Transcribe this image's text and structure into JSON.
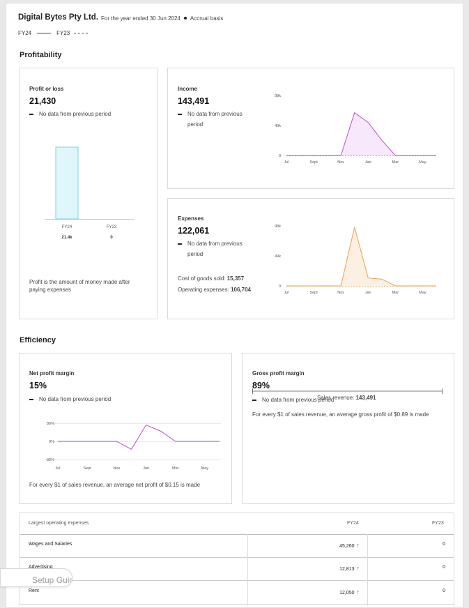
{
  "header": {
    "company": "Digital Bytes Pty Ltd.",
    "period": "For the year ended 30 Jun 2024",
    "basis": "Accrual basis",
    "legend_current": "FY24",
    "legend_previous": "FY23"
  },
  "profitability": {
    "title": "Profitability",
    "profit": {
      "label": "Profit or loss",
      "value": "21,430",
      "no_data": "No data from previous period",
      "description": "Profit is the amount of money made after paying expenses",
      "chart_data": {
        "type": "bar",
        "categories": [
          "FY24",
          "FY23"
        ],
        "values": [
          21.4,
          0
        ],
        "value_labels": [
          "21.4k",
          "0"
        ],
        "unit": "k",
        "colors": {
          "fill": "#dff6fb",
          "stroke": "#5fc8de"
        }
      }
    },
    "income": {
      "label": "Income",
      "value": "143,491",
      "no_data_line1": "No data from previous",
      "no_data_line2": "period",
      "chart_data": {
        "type": "area",
        "x": [
          "Jul",
          "Aug",
          "Sept",
          "Oct",
          "Nov",
          "Dec",
          "Jan",
          "Feb",
          "Mar",
          "Apr",
          "May",
          "Jun"
        ],
        "x_tick_labels": [
          "Jul",
          "Sept",
          "Nov",
          "Jan",
          "Mar",
          "May"
        ],
        "y_tick_labels": [
          "98k",
          "49k",
          "0"
        ],
        "ylim": [
          0,
          98
        ],
        "values": [
          0,
          0,
          0,
          0,
          0,
          70,
          54,
          25,
          0,
          0,
          0,
          0
        ],
        "color": "#b54fd6",
        "fill": "#f7e9fb"
      }
    },
    "expenses": {
      "label": "Expenses",
      "value": "122,061",
      "no_data_line1": "No data from previous",
      "no_data_line2": "period",
      "cogs_label": "Cost of goods sold:",
      "cogs_value": "15,357",
      "opex_label": "Operating expenses:",
      "opex_value": "106,704",
      "chart_data": {
        "type": "area",
        "x": [
          "Jul",
          "Aug",
          "Sept",
          "Oct",
          "Nov",
          "Dec",
          "Jan",
          "Feb",
          "Mar",
          "Apr",
          "May",
          "Jun"
        ],
        "x_tick_labels": [
          "Jul",
          "Sept",
          "Nov",
          "Jan",
          "Mar",
          "May"
        ],
        "y_tick_labels": [
          "98k",
          "49k",
          "0"
        ],
        "ylim": [
          0,
          98
        ],
        "values": [
          0,
          0,
          0,
          0,
          0,
          96,
          13,
          11,
          0,
          0,
          0,
          0
        ],
        "color": "#e9a04a",
        "fill": "#fcf0e2"
      }
    }
  },
  "efficiency": {
    "title": "Efficiency",
    "net_margin": {
      "label": "Net profit margin",
      "value": "15%",
      "no_data": "No data from previous period",
      "description": "For every $1 of sales revenue, an average net profit of $0.15 is made",
      "chart_data": {
        "type": "line",
        "x": [
          "Jul",
          "Aug",
          "Sept",
          "Oct",
          "Nov",
          "Dec",
          "Jan",
          "Feb",
          "Mar",
          "Apr",
          "May",
          "Jun"
        ],
        "x_tick_labels": [
          "Jul",
          "Sept",
          "Nov",
          "Jan",
          "Mar",
          "May"
        ],
        "y_tick_labels": [
          "80%",
          "0%",
          "-80%"
        ],
        "ylim": [
          -80,
          80
        ],
        "values": [
          0,
          0,
          0,
          0,
          0,
          -35,
          72,
          45,
          0,
          0,
          0,
          0
        ],
        "color": "#b54fd6"
      }
    },
    "gross_margin": {
      "label": "Gross profit margin",
      "value": "89%",
      "no_data": "No data from previous period",
      "revenue_label": "Sales revenue:",
      "revenue_value": "143,491",
      "description": "For every $1 of sales revenue, an average gross profit of $0.89 is made"
    }
  },
  "expenses_table": {
    "header_label": "Largest operating expenses",
    "col_current": "FY24",
    "col_previous": "FY23",
    "rows": [
      {
        "label": "Wages and Salaries",
        "current": "45,260",
        "previous": "0"
      },
      {
        "label": "Advertising",
        "current": "12,813",
        "previous": "0"
      },
      {
        "label": "Rent",
        "current": "12,050",
        "previous": "0"
      }
    ]
  },
  "setup_guide": {
    "label": "Setup Guide"
  }
}
